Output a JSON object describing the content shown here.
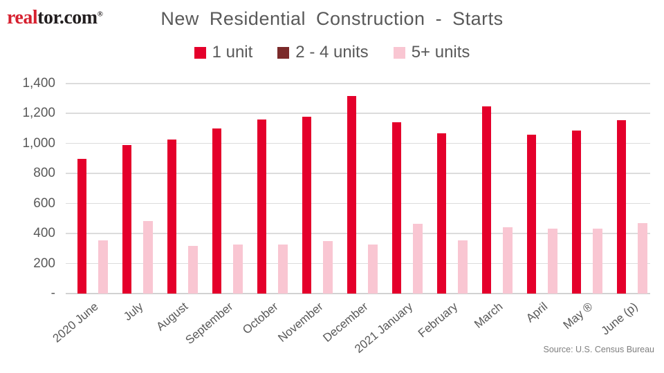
{
  "logo": {
    "real": "real",
    "tor": "tor.com",
    "reg": "®"
  },
  "chart_data": {
    "type": "bar",
    "title": "New Residential Construction - Starts",
    "source": "Source: U.S. Census Bureau",
    "categories": [
      "2020 June",
      "July",
      "August",
      "September",
      "October",
      "November",
      "December",
      "2021 January",
      "February",
      "March",
      "April",
      "May ®",
      "June (p)"
    ],
    "series": [
      {
        "name": "1 unit",
        "color": "#e4002b",
        "values": [
          900,
          990,
          1025,
          1100,
          1160,
          1180,
          1315,
          1140,
          1070,
          1250,
          1060,
          1085,
          1155
        ]
      },
      {
        "name": "2 - 4 units",
        "color": "#7b2a2a",
        "values": [
          0,
          0,
          0,
          0,
          0,
          0,
          0,
          0,
          0,
          0,
          0,
          0,
          0
        ]
      },
      {
        "name": "5+ units",
        "color": "#f9c6d2",
        "values": [
          355,
          485,
          320,
          325,
          325,
          350,
          325,
          465,
          355,
          440,
          435,
          435,
          470
        ]
      }
    ],
    "ylim": [
      0,
      1400
    ],
    "ytick_step": 200,
    "ytick_labels": [
      "1,400",
      "1,200",
      "1,000",
      "800",
      "600",
      "400",
      "200",
      "-"
    ],
    "grid": "horizontal",
    "legend_position": "top",
    "colors": {
      "text_gray": "#595959",
      "gridline": "#dcdcdc"
    }
  }
}
